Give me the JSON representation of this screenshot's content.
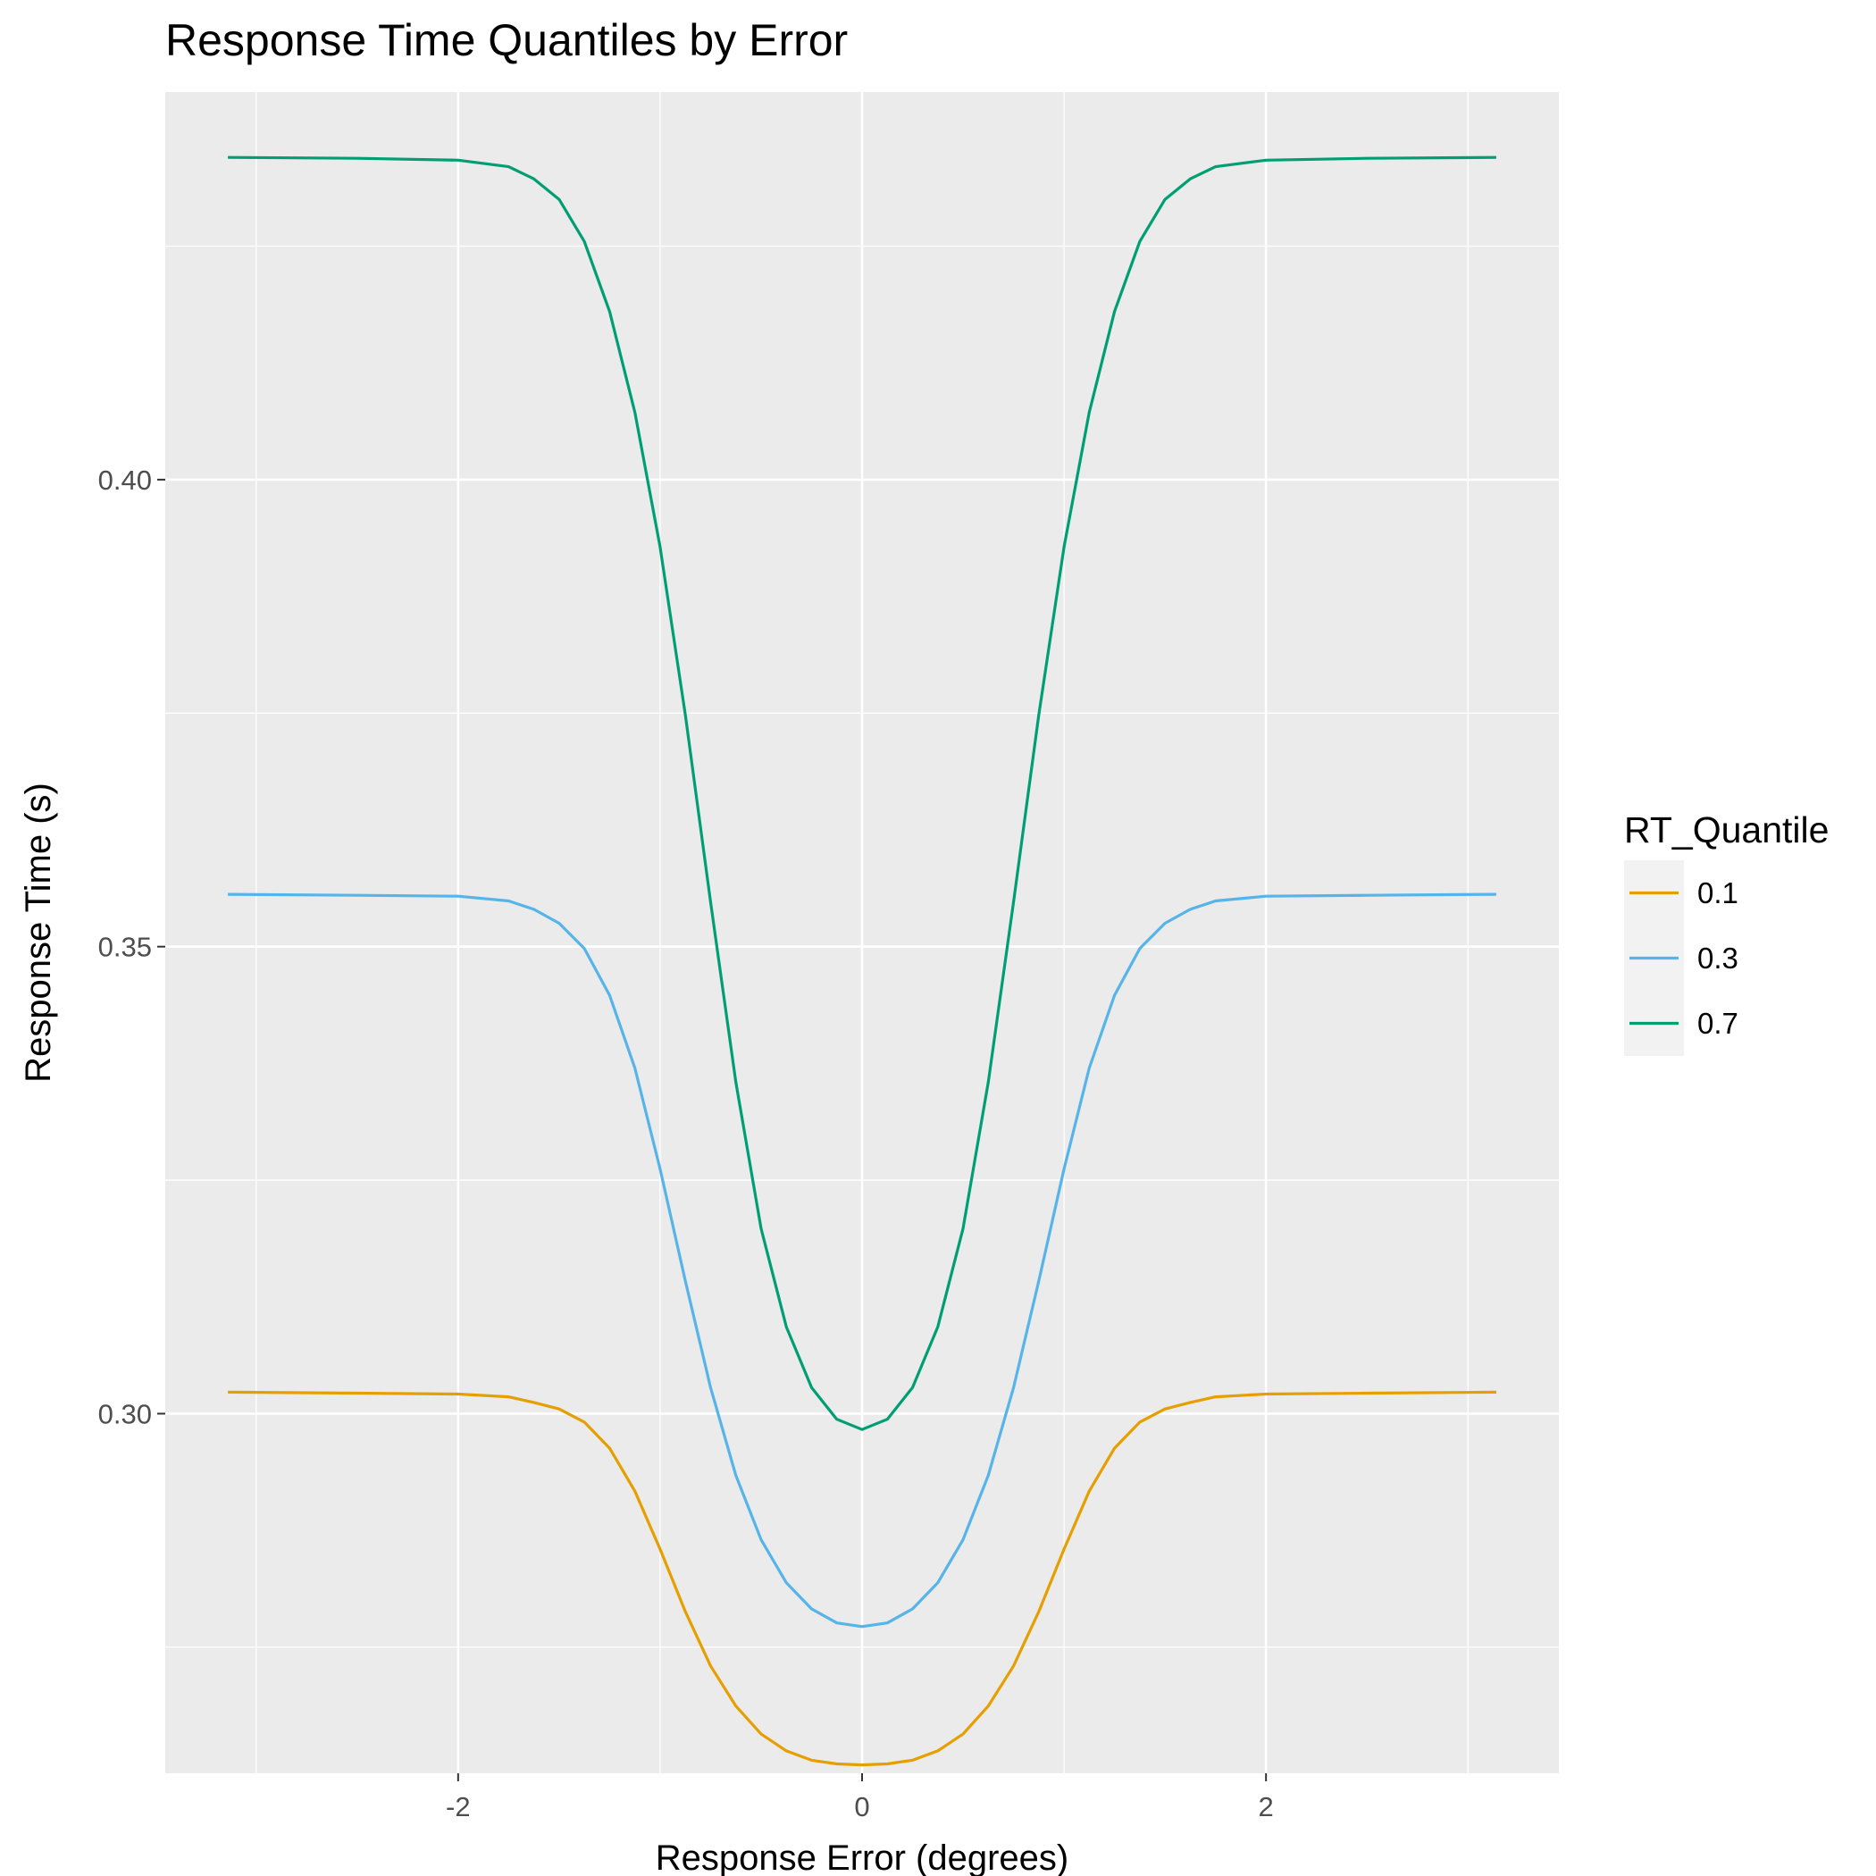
{
  "chart_data": {
    "type": "line",
    "title": "Response Time Quantiles by Error",
    "xlabel": "Response Error (degrees)",
    "ylabel": "Response Time (s)",
    "xlim": [
      -3.45,
      3.45
    ],
    "ylim": [
      0.2615,
      0.4415
    ],
    "x_ticks": [
      -2,
      0,
      2
    ],
    "x_tick_labels": [
      "-2",
      "0",
      "2"
    ],
    "y_ticks": [
      0.3,
      0.35,
      0.4
    ],
    "y_tick_labels": [
      "0.30",
      "0.35",
      "0.40"
    ],
    "grid": true,
    "legend": {
      "title": "RT_Quantile",
      "position": "right"
    },
    "x": [
      -3.14,
      -2.5,
      -2.0,
      -1.75,
      -1.625,
      -1.5,
      -1.375,
      -1.25,
      -1.125,
      -1.0,
      -0.875,
      -0.75,
      -0.625,
      -0.5,
      -0.375,
      -0.25,
      -0.125,
      0.0,
      0.125,
      0.25,
      0.375,
      0.5,
      0.625,
      0.75,
      0.875,
      1.0,
      1.125,
      1.25,
      1.375,
      1.5,
      1.625,
      1.75,
      2.0,
      2.5,
      3.14
    ],
    "series": [
      {
        "name": "0.1",
        "color": "#E69F00",
        "values": [
          0.3023,
          0.3022,
          0.3021,
          0.3018,
          0.3012,
          0.3005,
          0.2991,
          0.2963,
          0.2917,
          0.2855,
          0.2788,
          0.273,
          0.2687,
          0.2657,
          0.2639,
          0.2629,
          0.2625,
          0.2624,
          0.2625,
          0.2629,
          0.2639,
          0.2657,
          0.2687,
          0.273,
          0.2788,
          0.2855,
          0.2917,
          0.2963,
          0.2991,
          0.3005,
          0.3012,
          0.3018,
          0.3021,
          0.3022,
          0.3023
        ]
      },
      {
        "name": "0.3",
        "color": "#56B4E9",
        "values": [
          0.3556,
          0.3555,
          0.3554,
          0.3549,
          0.354,
          0.3525,
          0.3498,
          0.3448,
          0.337,
          0.3262,
          0.3142,
          0.3028,
          0.2934,
          0.2865,
          0.2819,
          0.2791,
          0.2776,
          0.2772,
          0.2776,
          0.2791,
          0.2819,
          0.2865,
          0.2934,
          0.3028,
          0.3142,
          0.3262,
          0.337,
          0.3448,
          0.3498,
          0.3525,
          0.354,
          0.3549,
          0.3554,
          0.3555,
          0.3556
        ]
      },
      {
        "name": "0.7",
        "color": "#009E73",
        "values": [
          0.4345,
          0.4344,
          0.4342,
          0.4335,
          0.4322,
          0.43,
          0.4255,
          0.418,
          0.4072,
          0.3928,
          0.3748,
          0.3548,
          0.3355,
          0.3198,
          0.3093,
          0.3028,
          0.2994,
          0.2983,
          0.2994,
          0.3028,
          0.3093,
          0.3198,
          0.3355,
          0.3548,
          0.3748,
          0.3928,
          0.4072,
          0.418,
          0.4255,
          0.43,
          0.4322,
          0.4335,
          0.4342,
          0.4344,
          0.4345
        ]
      }
    ]
  }
}
